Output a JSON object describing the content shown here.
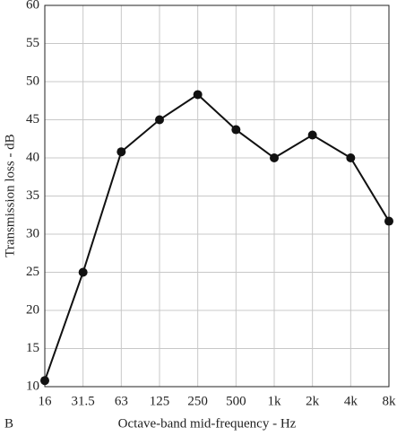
{
  "chart_data": {
    "type": "line",
    "panel_label": "B",
    "x_label": "Octave-band mid-frequency - Hz",
    "y_label": "Transmission loss - dB",
    "categories": [
      "16",
      "31.5",
      "63",
      "125",
      "250",
      "500",
      "1k",
      "2k",
      "4k",
      "8k"
    ],
    "series": [
      {
        "color": "#111111",
        "values": [
          10.8,
          25,
          40.8,
          45,
          48.3,
          43.7,
          40,
          43,
          40,
          31.7
        ]
      }
    ],
    "ylim": [
      10,
      60
    ],
    "yticks": [
      10,
      15,
      20,
      25,
      30,
      35,
      40,
      45,
      50,
      55,
      60
    ],
    "grid": true
  }
}
